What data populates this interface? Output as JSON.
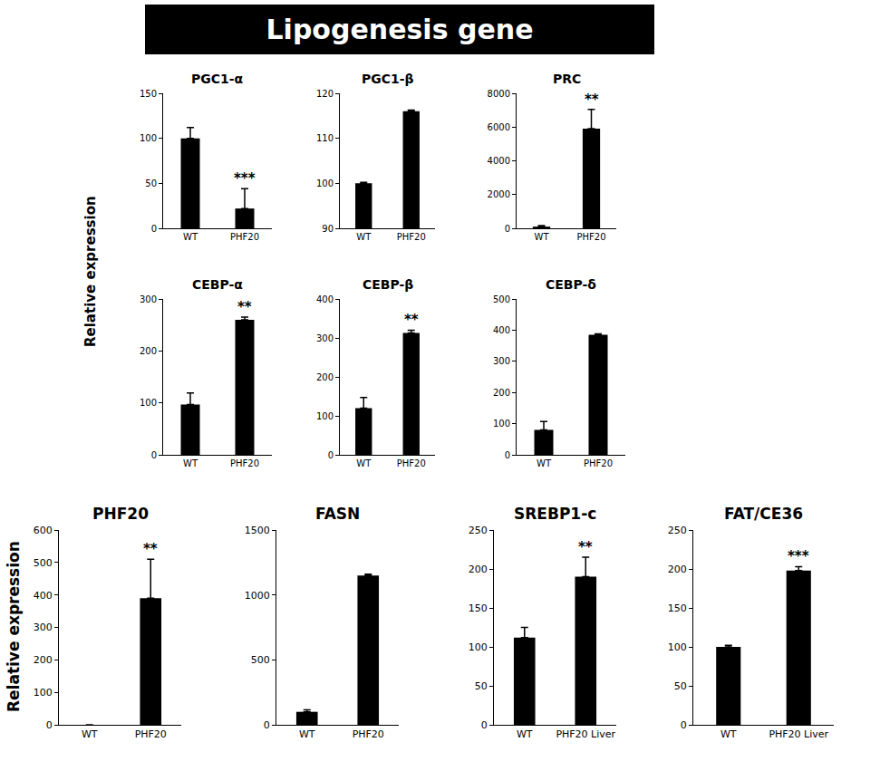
{
  "header": "Lipogenesis gene",
  "chart_data": [
    {
      "type": "bar",
      "title": "PGC1-α",
      "y_label": "Relative expression",
      "categories": [
        "WT",
        "PHF20"
      ],
      "values": [
        100,
        22
      ],
      "errors": [
        12,
        22
      ],
      "color": "#000000",
      "ylim": [
        0,
        150
      ],
      "yticks": [
        0,
        50,
        100,
        150
      ],
      "annotations": [
        {
          "category": "PHF20",
          "text": "***"
        }
      ]
    },
    {
      "type": "bar",
      "title": "PGC1-β",
      "categories": [
        "WT",
        "PHF20"
      ],
      "values": [
        100,
        116
      ],
      "errors": [
        0.2,
        0.3
      ],
      "color": "#000000",
      "ylim": [
        90,
        120
      ],
      "yticks": [
        90,
        100,
        110,
        120
      ]
    },
    {
      "type": "bar",
      "title": "PRC",
      "categories": [
        "WT",
        "PHF20"
      ],
      "values": [
        100,
        5900
      ],
      "errors": [
        60,
        1150
      ],
      "color": "#000000",
      "ylim": [
        0,
        8000
      ],
      "yticks": [
        0,
        2000,
        4000,
        6000,
        8000
      ],
      "annotations": [
        {
          "category": "PHF20",
          "text": "**"
        }
      ]
    },
    {
      "type": "bar",
      "title": "CEBP-α",
      "categories": [
        "WT",
        "PHF20"
      ],
      "values": [
        97,
        260
      ],
      "errors": [
        22,
        5
      ],
      "color": "#000000",
      "ylim": [
        0,
        300
      ],
      "yticks": [
        0,
        100,
        200,
        300
      ],
      "annotations": [
        {
          "category": "PHF20",
          "text": "**"
        }
      ]
    },
    {
      "type": "bar",
      "title": "CEBP-β",
      "categories": [
        "WT",
        "PHF20"
      ],
      "values": [
        120,
        313
      ],
      "errors": [
        27,
        7
      ],
      "color": "#000000",
      "ylim": [
        0,
        400
      ],
      "yticks": [
        0,
        100,
        200,
        300,
        400
      ],
      "annotations": [
        {
          "category": "PHF20",
          "text": "**"
        }
      ]
    },
    {
      "type": "bar",
      "title": "CEBP-δ",
      "categories": [
        "WT",
        "PHF20"
      ],
      "values": [
        80,
        385
      ],
      "errors": [
        27,
        3
      ],
      "color": "#000000",
      "ylim": [
        0,
        500
      ],
      "yticks": [
        0,
        100,
        200,
        300,
        400,
        500
      ]
    },
    {
      "type": "bar",
      "title": "PHF20",
      "y_label": "Relative expression",
      "categories": [
        "WT",
        "PHF20"
      ],
      "values": [
        0,
        390
      ],
      "errors": [
        0,
        120
      ],
      "color": "#000000",
      "ylim": [
        0,
        600
      ],
      "yticks": [
        0,
        100,
        200,
        300,
        400,
        500,
        600
      ],
      "annotations": [
        {
          "category": "PHF20",
          "text": "**"
        }
      ]
    },
    {
      "type": "bar",
      "title": "FASN",
      "categories": [
        "WT",
        "PHF20"
      ],
      "values": [
        100,
        1150
      ],
      "errors": [
        15,
        10
      ],
      "color": "#000000",
      "ylim": [
        0,
        1500
      ],
      "yticks": [
        0,
        500,
        1000,
        1500
      ]
    },
    {
      "type": "bar",
      "title": "SREBP1-c",
      "categories": [
        "WT",
        "PHF20 Liver"
      ],
      "values": [
        112,
        190
      ],
      "errors": [
        13,
        25
      ],
      "color": "#000000",
      "ylim": [
        0,
        250
      ],
      "yticks": [
        0,
        50,
        100,
        150,
        200,
        250
      ],
      "annotations": [
        {
          "category": "PHF20 Liver",
          "text": "**"
        }
      ]
    },
    {
      "type": "bar",
      "title": "FAT/CE36",
      "categories": [
        "WT",
        "PHF20 Liver"
      ],
      "values": [
        100,
        198
      ],
      "errors": [
        2,
        5
      ],
      "color": "#000000",
      "ylim": [
        0,
        250
      ],
      "yticks": [
        0,
        50,
        100,
        150,
        200,
        250
      ],
      "annotations": [
        {
          "category": "PHF20 Liver",
          "text": "***"
        }
      ]
    }
  ]
}
